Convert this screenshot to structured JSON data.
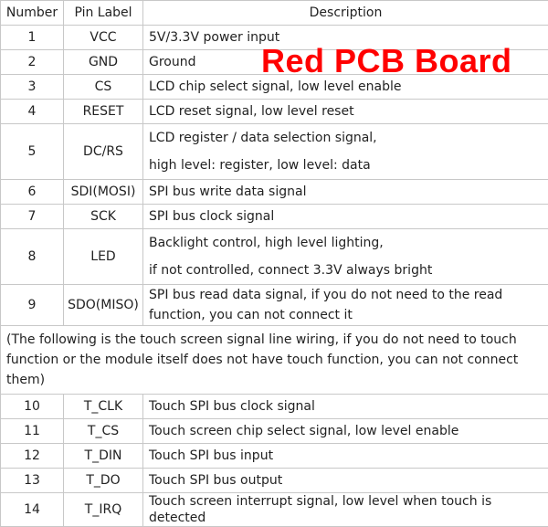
{
  "headers": {
    "number": "Number",
    "pin_label": "Pin Label",
    "description": "Description"
  },
  "rows": [
    {
      "number": "1",
      "pin": "VCC",
      "desc": [
        "5V/3.3V power input"
      ]
    },
    {
      "number": "2",
      "pin": "GND",
      "desc": [
        "Ground"
      ]
    },
    {
      "number": "3",
      "pin": "CS",
      "desc": [
        "LCD chip select signal, low level enable"
      ]
    },
    {
      "number": "4",
      "pin": "RESET",
      "desc": [
        "LCD reset signal, low level reset"
      ]
    },
    {
      "number": "5",
      "pin": "DC/RS",
      "desc": [
        "LCD register / data selection signal,",
        "high level: register, low level: data"
      ]
    },
    {
      "number": "6",
      "pin": "SDI(MOSI)",
      "desc": [
        "SPI bus write data signal"
      ]
    },
    {
      "number": "7",
      "pin": "SCK",
      "desc": [
        "SPI bus clock signal"
      ]
    },
    {
      "number": "8",
      "pin": "LED",
      "desc": [
        "Backlight control, high level lighting,",
        "if not controlled, connect 3.3V always bright"
      ]
    },
    {
      "number": "9",
      "pin": "SDO(MISO)",
      "desc": [
        "SPI bus read data signal, if you do not need to the read",
        "function, you can not connect it"
      ]
    }
  ],
  "touch_note": "(The following is the touch screen signal line wiring, if you do not need to touch function or the module itself does not have touch function, you can not connect them)",
  "touch_rows": [
    {
      "number": "10",
      "pin": "T_CLK",
      "desc": "Touch SPI bus clock signal"
    },
    {
      "number": "11",
      "pin": "T_CS",
      "desc": "Touch screen chip select signal, low level enable"
    },
    {
      "number": "12",
      "pin": "T_DIN",
      "desc": "Touch SPI bus input"
    },
    {
      "number": "13",
      "pin": "T_DO",
      "desc": "Touch SPI bus output"
    },
    {
      "number": "14",
      "pin": "T_IRQ",
      "desc": "Touch screen interrupt signal, low level when touch is detected"
    }
  ],
  "overlay_label": "Red PCB Board",
  "overlay_color": "#ff0000"
}
